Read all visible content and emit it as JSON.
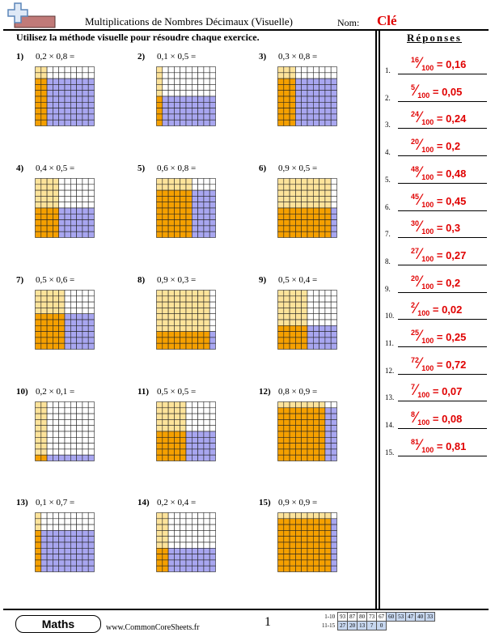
{
  "header": {
    "title": "Multiplications de Nombres Décimaux (Visuelle)",
    "name_label": "Nom:",
    "name_value": "Clé",
    "instructions": "Utilisez la méthode visuelle pour résoudre chaque exercice."
  },
  "colors": {
    "yellow": "#fde39a",
    "orange": "#f5a000",
    "purple": "#a8a6f0",
    "white": "#ffffff",
    "answer_red": "#e00000"
  },
  "problems": [
    {
      "number": "1)",
      "expression": "0,2 × 0,8 =",
      "a": 0.2,
      "b": 0.8
    },
    {
      "number": "2)",
      "expression": "0,1 × 0,5 =",
      "a": 0.1,
      "b": 0.5
    },
    {
      "number": "3)",
      "expression": "0,3 × 0,8 =",
      "a": 0.3,
      "b": 0.8
    },
    {
      "number": "4)",
      "expression": "0,4 × 0,5 =",
      "a": 0.4,
      "b": 0.5
    },
    {
      "number": "5)",
      "expression": "0,6 × 0,8 =",
      "a": 0.6,
      "b": 0.8
    },
    {
      "number": "6)",
      "expression": "0,9 × 0,5 =",
      "a": 0.9,
      "b": 0.5
    },
    {
      "number": "7)",
      "expression": "0,5 × 0,6 =",
      "a": 0.5,
      "b": 0.6
    },
    {
      "number": "8)",
      "expression": "0,9 × 0,3 =",
      "a": 0.9,
      "b": 0.3
    },
    {
      "number": "9)",
      "expression": "0,5 × 0,4 =",
      "a": 0.5,
      "b": 0.4
    },
    {
      "number": "10)",
      "expression": "0,2 × 0,1 =",
      "a": 0.2,
      "b": 0.1
    },
    {
      "number": "11)",
      "expression": "0,5 × 0,5 =",
      "a": 0.5,
      "b": 0.5
    },
    {
      "number": "12)",
      "expression": "0,8 × 0,9 =",
      "a": 0.8,
      "b": 0.9
    },
    {
      "number": "13)",
      "expression": "0,1 × 0,7 =",
      "a": 0.1,
      "b": 0.7
    },
    {
      "number": "14)",
      "expression": "0,2 × 0,4 =",
      "a": 0.2,
      "b": 0.4
    },
    {
      "number": "15)",
      "expression": "0,9 × 0,9 =",
      "a": 0.9,
      "b": 0.9
    }
  ],
  "answers": {
    "title": "Réponses",
    "items": [
      {
        "number": "1.",
        "numerator": "16",
        "denominator": "100",
        "decimal": "0,16"
      },
      {
        "number": "2.",
        "numerator": "5",
        "denominator": "100",
        "decimal": "0,05"
      },
      {
        "number": "3.",
        "numerator": "24",
        "denominator": "100",
        "decimal": "0,24"
      },
      {
        "number": "4.",
        "numerator": "20",
        "denominator": "100",
        "decimal": "0,2"
      },
      {
        "number": "5.",
        "numerator": "48",
        "denominator": "100",
        "decimal": "0,48"
      },
      {
        "number": "6.",
        "numerator": "45",
        "denominator": "100",
        "decimal": "0,45"
      },
      {
        "number": "7.",
        "numerator": "30",
        "denominator": "100",
        "decimal": "0,3"
      },
      {
        "number": "8.",
        "numerator": "27",
        "denominator": "100",
        "decimal": "0,27"
      },
      {
        "number": "9.",
        "numerator": "20",
        "denominator": "100",
        "decimal": "0,2"
      },
      {
        "number": "10.",
        "numerator": "2",
        "denominator": "100",
        "decimal": "0,02"
      },
      {
        "number": "11.",
        "numerator": "25",
        "denominator": "100",
        "decimal": "0,25"
      },
      {
        "number": "12.",
        "numerator": "72",
        "denominator": "100",
        "decimal": "0,72"
      },
      {
        "number": "13.",
        "numerator": "7",
        "denominator": "100",
        "decimal": "0,07"
      },
      {
        "number": "14.",
        "numerator": "8",
        "denominator": "100",
        "decimal": "0,08"
      },
      {
        "number": "15.",
        "numerator": "81",
        "denominator": "100",
        "decimal": "0,81"
      }
    ]
  },
  "footer": {
    "badge": "Maths",
    "website": "www.CommonCoreSheets.fr",
    "page_number": "1",
    "score_rows": [
      {
        "label": "1-10",
        "cells": [
          "93",
          "87",
          "80",
          "73",
          "67",
          "60",
          "53",
          "47",
          "40",
          "33"
        ]
      },
      {
        "label": "11-15",
        "cells": [
          "27",
          "20",
          "13",
          "7",
          "0"
        ]
      }
    ]
  }
}
